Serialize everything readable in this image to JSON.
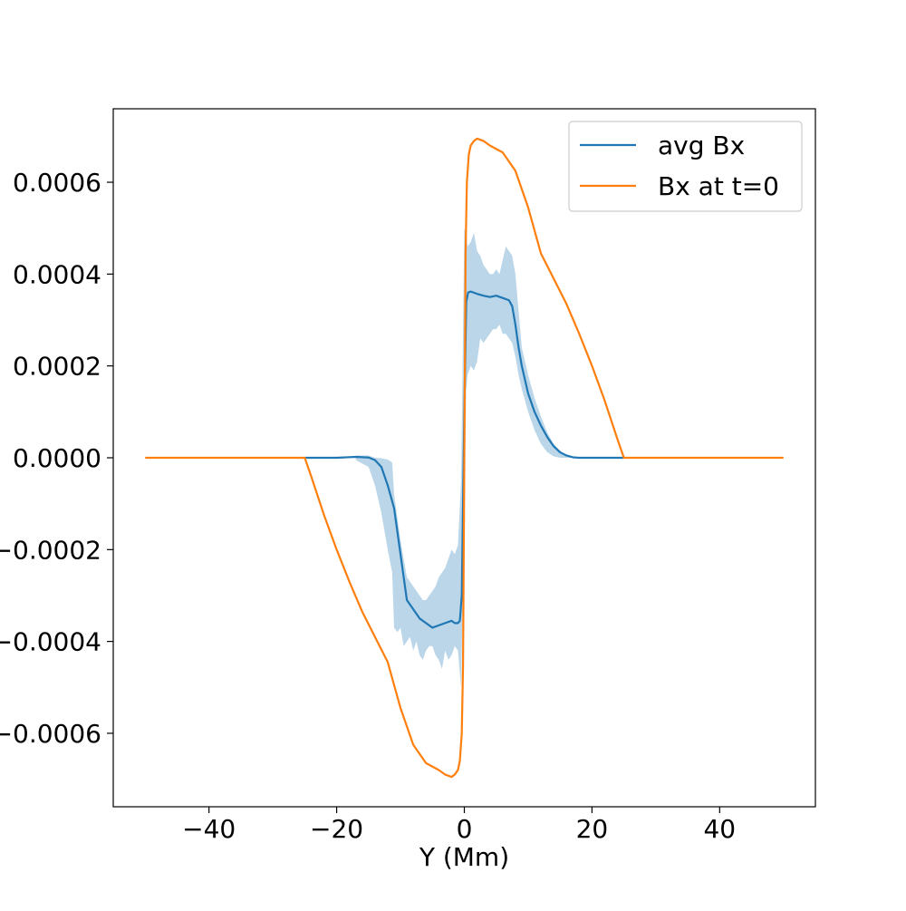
{
  "chart_data": {
    "type": "line",
    "title": "",
    "xlabel": "Y (Mm)",
    "ylabel": "",
    "xlim": [
      -55,
      55
    ],
    "ylim": [
      -0.00076,
      0.00076
    ],
    "grid": false,
    "legend_position": "top-right",
    "x_ticks": [
      -40,
      -20,
      0,
      20,
      40
    ],
    "x_tick_labels": [
      "−40",
      "−20",
      "0",
      "20",
      "40"
    ],
    "y_ticks": [
      -0.0006,
      -0.0004,
      -0.0002,
      0.0,
      0.0002,
      0.0004,
      0.0006
    ],
    "y_tick_labels": [
      "−0.0006",
      "−0.0004",
      "−0.0002",
      "0.0000",
      "0.0002",
      "0.0004",
      "0.0006"
    ],
    "series": [
      {
        "name": "avg Bx",
        "color": "#1f77b4",
        "x": [
          -25,
          -20,
          -17,
          -15,
          -14,
          -13,
          -12,
          -11,
          -10.5,
          -10,
          -9.5,
          -9,
          -8,
          -7,
          -6,
          -5,
          -4,
          -3,
          -2,
          -1.5,
          -1,
          -0.7,
          -0.4,
          0,
          0.3,
          0.6,
          1,
          2,
          3,
          4,
          5,
          6,
          7,
          7.5,
          8,
          8.5,
          9,
          10,
          11,
          12,
          13,
          14,
          15,
          16,
          17,
          18,
          20,
          25
        ],
        "y": [
          0,
          0,
          2e-06,
          5e-07,
          -5e-06,
          -2e-05,
          -6e-05,
          -0.00011,
          -0.00016,
          -0.00021,
          -0.00026,
          -0.00031,
          -0.00033,
          -0.00035,
          -0.00036,
          -0.00037,
          -0.000365,
          -0.00036,
          -0.000355,
          -0.00036,
          -0.00036,
          -0.000355,
          -0.0003,
          0.0001,
          0.00034,
          0.00036,
          0.000362,
          0.000357,
          0.000353,
          0.00035,
          0.000353,
          0.000348,
          0.000343,
          0.00033,
          0.00029,
          0.00024,
          0.0002,
          0.00014,
          0.0001,
          7e-05,
          4.5e-05,
          2.5e-05,
          1.2e-05,
          5e-06,
          1e-06,
          0,
          0,
          0
        ]
      },
      {
        "name": "Bx at t=0",
        "color": "#ff7f0e",
        "x": [
          -50,
          -25,
          -24,
          -22,
          -20,
          -18,
          -16,
          -14,
          -12,
          -10,
          -8,
          -6,
          -4,
          -3,
          -2,
          -1.5,
          -1,
          -0.7,
          -0.4,
          -0.2,
          0,
          0.2,
          0.4,
          0.7,
          1,
          1.5,
          2,
          3,
          4,
          6,
          8,
          10,
          12,
          14,
          16,
          18,
          20,
          22,
          24,
          25,
          50
        ],
        "y": [
          0,
          0,
          -4e-05,
          -0.000124,
          -0.0002,
          -0.00027,
          -0.000335,
          -0.00039,
          -0.000445,
          -0.000545,
          -0.000625,
          -0.000665,
          -0.00068,
          -0.00069,
          -0.000695,
          -0.00069,
          -0.00068,
          -0.00066,
          -0.0006,
          -0.00045,
          0,
          0.00045,
          0.0006,
          0.00066,
          0.00068,
          0.00069,
          0.000695,
          0.00069,
          0.00068,
          0.000665,
          0.000625,
          0.000545,
          0.000445,
          0.00039,
          0.000335,
          0.00027,
          0.0002,
          0.000124,
          4e-05,
          0,
          0
        ]
      }
    ],
    "band": {
      "series": "avg Bx",
      "color": "#1f77b4",
      "opacity": 0.3,
      "x": [
        -17,
        -15,
        -14,
        -13,
        -12,
        -11.3,
        -11,
        -10.5,
        -10,
        -9.5,
        -9,
        -8.5,
        -8,
        -7.5,
        -7,
        -6.5,
        -6,
        -5.5,
        -5,
        -4.5,
        -4,
        -3.5,
        -3,
        -2.5,
        -2,
        -1.5,
        -1,
        -0.5,
        0,
        0.3,
        0.5,
        1,
        1.5,
        2,
        2.5,
        3,
        3.5,
        4,
        4.5,
        5,
        5.5,
        6,
        6.5,
        7,
        7.5,
        8,
        8.5,
        9,
        10,
        11,
        12,
        13,
        14,
        15,
        16,
        17,
        18
      ],
      "upper": [
        5e-06,
        5e-06,
        0,
        -1e-06,
        -4e-06,
        -1e-05,
        -8e-05,
        -0.00013,
        -0.00018,
        -0.00022,
        -0.00026,
        -0.00027,
        -0.00028,
        -0.00029,
        -0.0003,
        -0.00031,
        -0.00031,
        -0.0003,
        -0.00029,
        -0.00028,
        -0.00026,
        -0.00025,
        -0.00024,
        -0.00022,
        -0.0002,
        -0.00021,
        -0.00019,
        -5e-05,
        0.0005,
        0.00049,
        0.00046,
        0.00047,
        0.00049,
        0.00045,
        0.00044,
        0.00042,
        0.00041,
        0.0004,
        0.0004,
        0.00041,
        0.0004,
        0.00043,
        0.00046,
        0.00045,
        0.00044,
        0.0004,
        0.00032,
        0.00024,
        0.00018,
        0.00013,
        9e-05,
        5.5e-05,
        3e-05,
        1.5e-05,
        5e-06,
        1e-06,
        0
      ],
      "lower": [
        -5e-06,
        -2e-05,
        -6e-05,
        -0.00012,
        -0.0002,
        -0.00025,
        -0.00037,
        -0.00038,
        -0.00037,
        -0.00041,
        -0.0004,
        -0.00039,
        -0.00042,
        -0.0004,
        -0.00043,
        -0.00044,
        -0.00042,
        -0.00041,
        -0.00041,
        -0.00043,
        -0.00044,
        -0.00046,
        -0.00042,
        -0.00044,
        -0.00043,
        -0.00041,
        -0.00042,
        -0.0005,
        -0.0001,
        0.00015,
        0.00018,
        0.0002,
        0.00019,
        0.00021,
        0.00026,
        0.00025,
        0.00026,
        0.00027,
        0.00028,
        0.00028,
        0.00029,
        0.00027,
        0.00027,
        0.00026,
        0.00025,
        0.00022,
        0.00018,
        0.00015,
        0.0001,
        6e-05,
        3e-05,
        1.2e-05,
        3e-06,
        0,
        0,
        0,
        0
      ]
    }
  }
}
